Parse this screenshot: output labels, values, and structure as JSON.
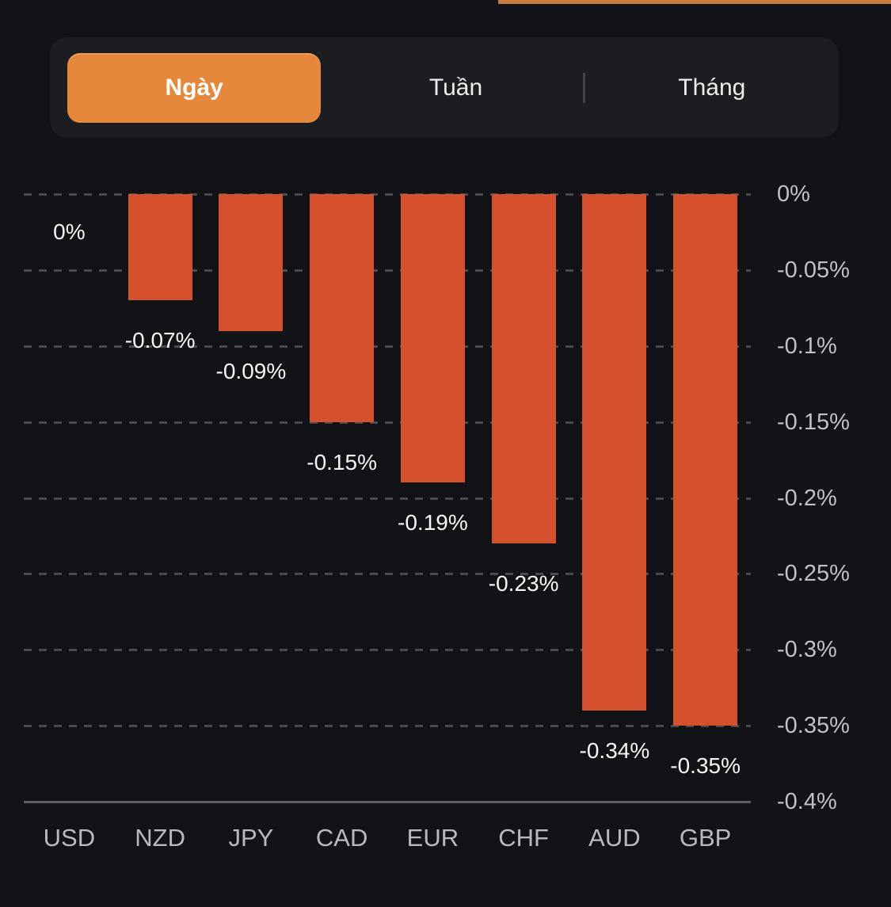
{
  "top_accent": {
    "color": "#c97b3c"
  },
  "tabs": {
    "items": [
      {
        "label": "Ngày",
        "selected": true
      },
      {
        "label": "Tuần",
        "selected": false
      },
      {
        "label": "Tháng",
        "selected": false
      }
    ],
    "selected_color": "#e5883b"
  },
  "chart_data": {
    "type": "bar",
    "title": "",
    "categories": [
      "USD",
      "NZD",
      "JPY",
      "CAD",
      "EUR",
      "CHF",
      "AUD",
      "GBP"
    ],
    "values": [
      0,
      -0.07,
      -0.09,
      -0.15,
      -0.19,
      -0.23,
      -0.34,
      -0.35
    ],
    "value_labels": [
      "0%",
      "-0.07%",
      "-0.09%",
      "-0.15%",
      "-0.19%",
      "-0.23%",
      "-0.34%",
      "-0.35%"
    ],
    "unit": "%",
    "xlabel": "",
    "ylabel": "",
    "ylim": [
      -0.4,
      0
    ],
    "ytick_values": [
      0,
      -0.05,
      -0.1,
      -0.15,
      -0.2,
      -0.25,
      -0.3,
      -0.35,
      -0.4
    ],
    "ytick_labels": [
      "0%",
      "-0.05%",
      "-0.1%",
      "-0.15%",
      "-0.2%",
      "-0.25%",
      "-0.3%",
      "-0.35%",
      "-0.4%"
    ],
    "axis_side": "right",
    "grid": "dashed-horizontal",
    "legend": "none",
    "bar_color": "#d5502c",
    "background_color": "#121316"
  }
}
